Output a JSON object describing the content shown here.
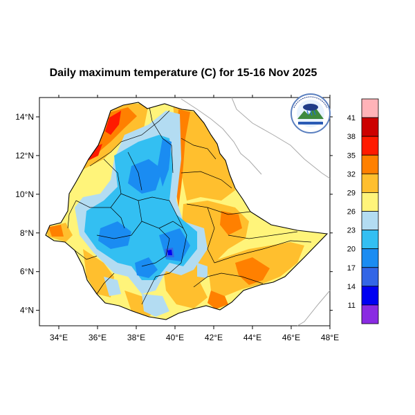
{
  "title": "Daily maximum temperature (C) for 15-16 Nov 2025",
  "map": {
    "lon_range": [
      33,
      48
    ],
    "lat_range": [
      3.2,
      15
    ],
    "x_ticks": [
      "34°E",
      "36°E",
      "38°E",
      "40°E",
      "42°E",
      "44°E",
      "46°E",
      "48°E"
    ],
    "y_ticks": [
      "14°N",
      "12°N",
      "10°N",
      "8°N",
      "6°N",
      "4°N"
    ],
    "logo": "ethiopia-meteorology-institute-logo"
  },
  "colorbar": {
    "labels": [
      "41",
      "38",
      "35",
      "32",
      "29",
      "26",
      "23",
      "20",
      "17",
      "14",
      "11"
    ],
    "colors": [
      "#ffb3b8",
      "#cc0000",
      "#ff1a00",
      "#ff8000",
      "#ffbf2e",
      "#fff47a",
      "#b3dcf2",
      "#33bff2",
      "#1a8cf2",
      "#3366e6",
      "#0000f2",
      "#8a2be2"
    ]
  }
}
